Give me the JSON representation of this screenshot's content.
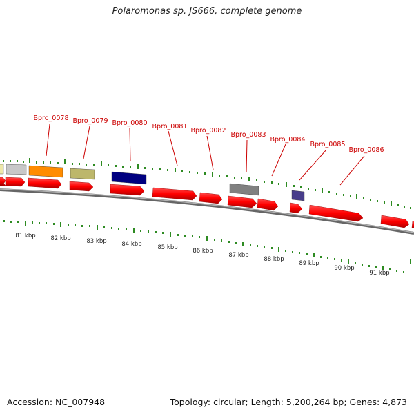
{
  "title": "Polaromonas sp. JS666, complete genome",
  "footer": {
    "accession": "Accession: NC_007948",
    "summary": "Topology: circular; Length: 5,200,264 bp; Genes: 4,873"
  },
  "kbp_labels": [
    "81 kbp",
    "82 kbp",
    "83 kbp",
    "84 kbp",
    "85 kbp",
    "86 kbp",
    "87 kbp",
    "88 kbp",
    "89 kbp",
    "90 kbp",
    "91 kbp"
  ],
  "gene_labels": [
    "Bpro_0078",
    "Bpro_0079",
    "Bpro_0080",
    "Bpro_0081",
    "Bpro_0082",
    "Bpro_0083",
    "Bpro_0084",
    "Bpro_0085",
    "Bpro_0086"
  ],
  "colors": {
    "label_red": "#cc0000",
    "tick_green": "#2e8b22",
    "backbone": "#888888",
    "forward_gene": "#ff1a1a",
    "orange": "#ff8c00",
    "olive": "#bdb76b",
    "navy": "#000080",
    "gray": "#808080",
    "light_gray": "#c8c8c8",
    "khaki": "#eee8aa",
    "slate": "#483d8b"
  }
}
